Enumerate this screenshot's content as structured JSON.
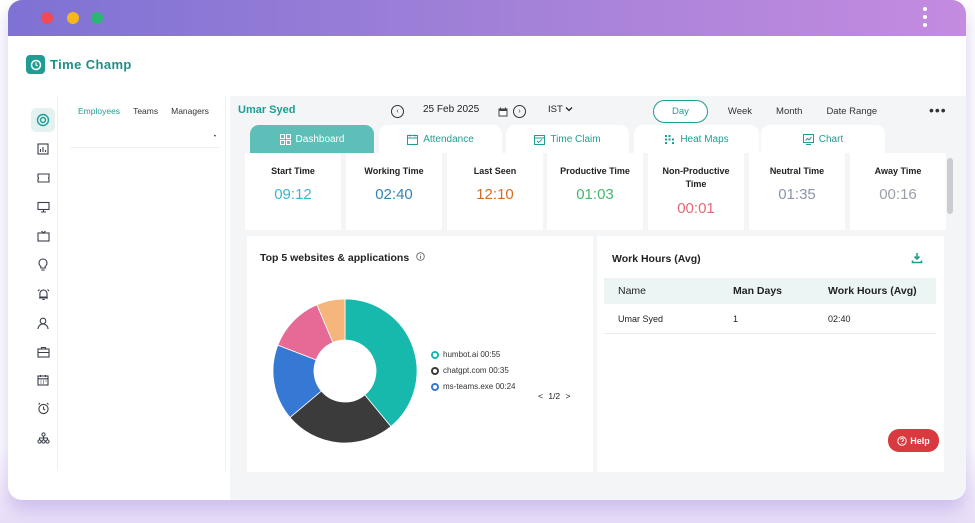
{
  "window": {
    "controls": [
      "close",
      "minimize",
      "maximize"
    ],
    "menu_icon": "kebab-menu-icon"
  },
  "app": {
    "name": "Time Champ"
  },
  "sidebar_icons": [
    "target-icon",
    "report-icon",
    "ticket-icon",
    "monitor-icon",
    "tv-icon",
    "lightbulb-icon",
    "alarm-icon",
    "user-icon",
    "briefcase-icon",
    "calendar-icon",
    "clock-icon",
    "org-chart-icon"
  ],
  "employee_panel": {
    "tabs": [
      "Employees",
      "Teams",
      "Managers"
    ],
    "active_tab": "Employees"
  },
  "header": {
    "user": "Umar Syed",
    "date": "25 Feb 2025",
    "timezone": "IST",
    "ranges": [
      "Day",
      "Week",
      "Month",
      "Date Range"
    ],
    "active_range": "Day"
  },
  "tabs": [
    "Dashboard",
    "Attendance",
    "Time Claim",
    "Heat Maps",
    "Chart"
  ],
  "active_tab": "Dashboard",
  "stats": [
    {
      "label": "Start Time",
      "value": "09:12",
      "color": "#38b6d6"
    },
    {
      "label": "Working Time",
      "value": "02:40",
      "color": "#2f86b3"
    },
    {
      "label": "Last Seen",
      "value": "12:10",
      "color": "#d96a1e"
    },
    {
      "label": "Productive Time",
      "value": "01:03",
      "color": "#43b86b"
    },
    {
      "label": "Non-Productive Time",
      "value": "00:01",
      "color": "#e06a7c"
    },
    {
      "label": "Neutral Time",
      "value": "01:35",
      "color": "#8a94ad"
    },
    {
      "label": "Away Time",
      "value": "00:16",
      "color": "#9aa0a8"
    }
  ],
  "top_apps": {
    "title": "Top 5 websites & applications",
    "legend": [
      {
        "label": "humbot.ai 00:55",
        "color": "#17b9ad"
      },
      {
        "label": "chatgpt.com 00:35",
        "color": "#3b3b3b"
      },
      {
        "label": "ms-teams.exe 00:24",
        "color": "#3679d4"
      }
    ],
    "pager": "1/2"
  },
  "chart_data": {
    "type": "pie",
    "categories": [
      "humbot.ai",
      "chatgpt.com",
      "ms-teams.exe",
      "",
      ""
    ],
    "values": [
      55,
      35,
      24,
      18,
      9
    ],
    "colors": [
      "#17b9ad",
      "#3b3b3b",
      "#3679d4",
      "#e66a95",
      "#f5b67c"
    ]
  },
  "work_hours": {
    "title": "Work Hours (Avg)",
    "columns": [
      "Name",
      "Man Days",
      "Work Hours (Avg)"
    ],
    "rows": [
      [
        "Umar Syed",
        "1",
        "02:40"
      ]
    ]
  },
  "help": {
    "label": "Help"
  }
}
